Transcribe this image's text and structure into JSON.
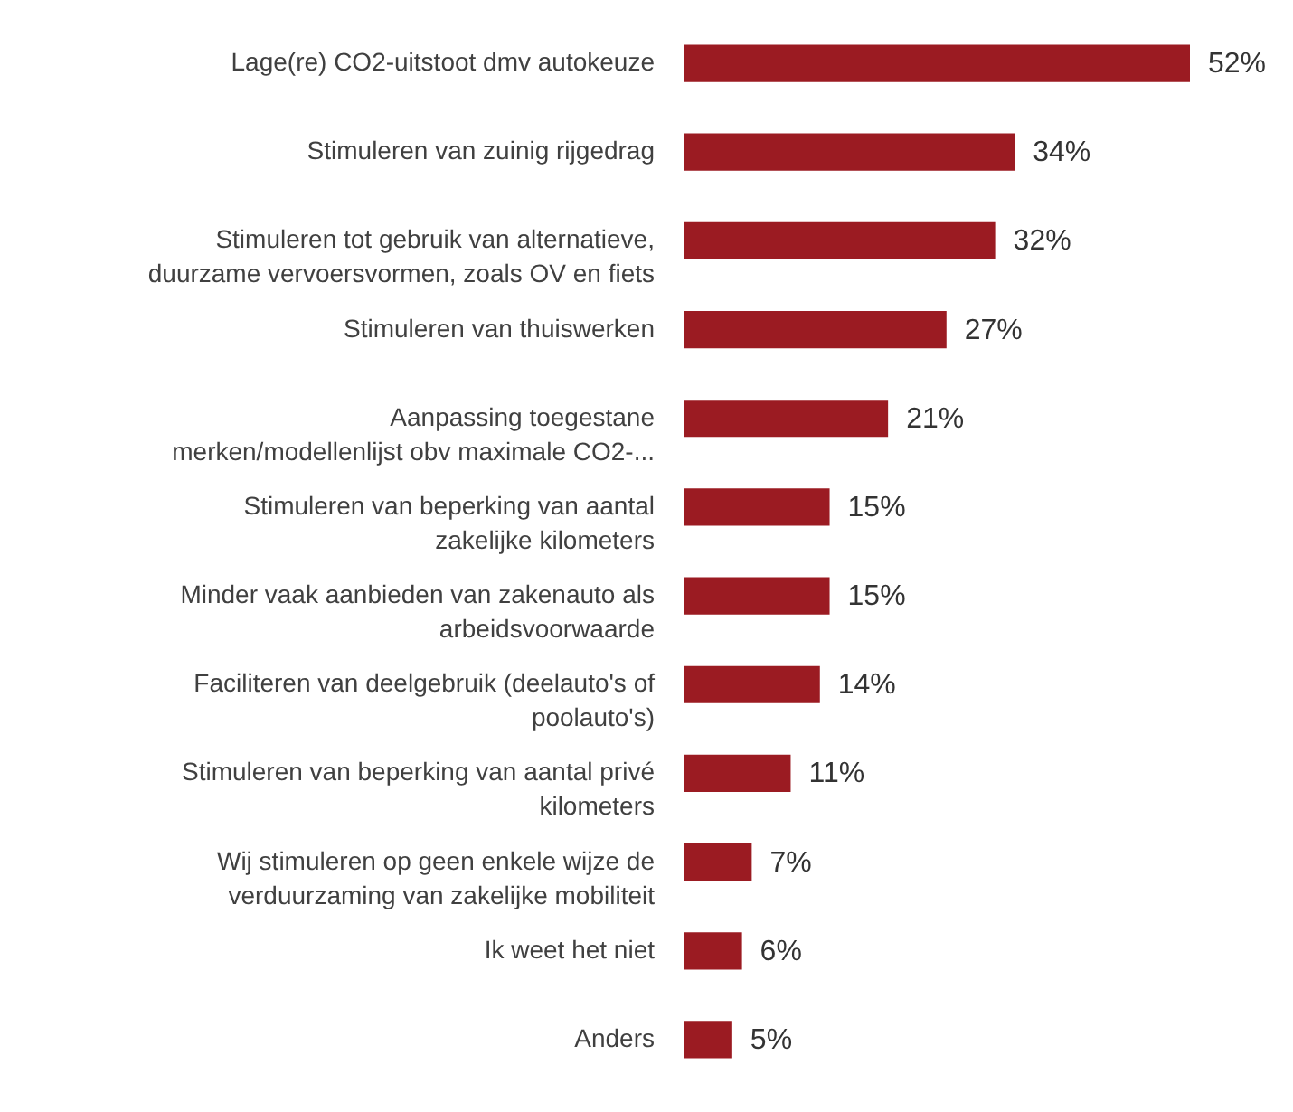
{
  "chart_data": {
    "type": "bar",
    "orientation": "horizontal",
    "categories": [
      "Lage(re) CO2-uitstoot dmv autokeuze",
      "Stimuleren van zuinig rijgedrag",
      "Stimuleren tot gebruik van alternatieve,\nduurzame vervoersvormen, zoals OV en fiets",
      "Stimuleren van thuiswerken",
      "Aanpassing toegestane\nmerken/modellenlijst obv maximale CO2-...",
      "Stimuleren van beperking van aantal\nzakelijke kilometers",
      "Minder vaak aanbieden van zakenauto als\narbeidsvoorwaarde",
      "Faciliteren van deelgebruik (deelauto's of\npoolauto's)",
      "Stimuleren van beperking van aantal privé\nkilometers",
      "Wij stimuleren op geen enkele wijze de\nverduurzaming van zakelijke mobiliteit",
      "Ik weet het niet",
      "Anders"
    ],
    "values": [
      52,
      34,
      32,
      27,
      21,
      15,
      15,
      14,
      11,
      7,
      6,
      5
    ],
    "value_labels": [
      "52%",
      "34%",
      "32%",
      "27%",
      "21%",
      "15%",
      "15%",
      "14%",
      "11%",
      "7%",
      "6%",
      "5%"
    ],
    "color": "#9b1b22"
  }
}
